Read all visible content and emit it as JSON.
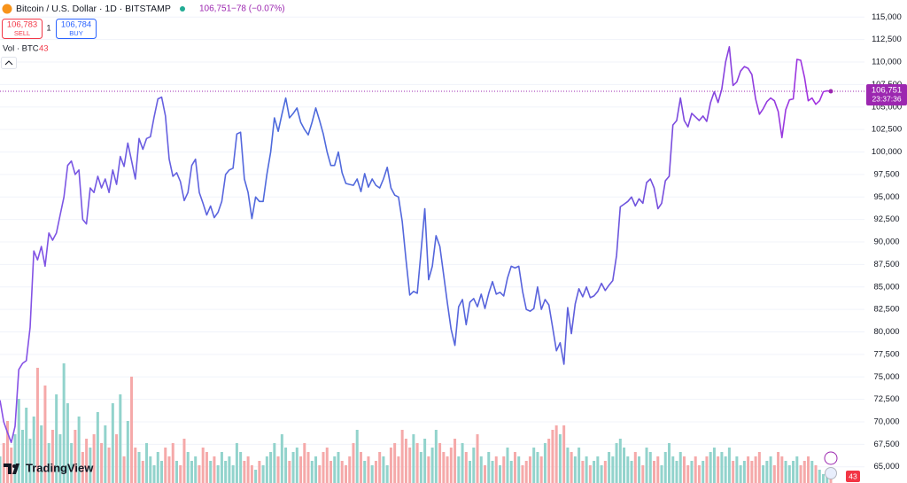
{
  "header": {
    "symbol": "Bitcoin / U.S. Dollar · 1D · BITSTAMP",
    "price": "106,751",
    "change": "−78 (−0.07%)",
    "sell_price": "106,783",
    "sell_label": "SELL",
    "spread": "1",
    "buy_price": "106,784",
    "buy_label": "BUY",
    "vol_label": "Vol · BTC",
    "vol_value": "43"
  },
  "price_badge": {
    "price": "106,751",
    "countdown": "23:37:36"
  },
  "logo": "TradingView",
  "chart_data": {
    "type": "line",
    "series": [
      {
        "colors": [
          "#8a4fe6",
          "#4d6bdc",
          "#5a62dc",
          "#a62fe0"
        ],
        "values": [
          72400,
          70000,
          68800,
          67700,
          69500,
          75800,
          76500,
          76800,
          80500,
          89000,
          88000,
          89500,
          87300,
          91000,
          90200,
          91000,
          93000,
          95000,
          98500,
          99000,
          97500,
          98000,
          92500,
          92000,
          96000,
          95500,
          97300,
          96000,
          97000,
          95500,
          98000,
          96400,
          99500,
          98400,
          101000,
          99000,
          97000,
          101500,
          100300,
          101500,
          101700,
          103900,
          105900,
          106100,
          104000,
          99200,
          97300,
          97700,
          96700,
          94600,
          95500,
          98500,
          99200,
          95500,
          94300,
          93000,
          94000,
          92700,
          93300,
          94500,
          97500,
          98000,
          98200,
          102000,
          102200,
          97000,
          95500,
          92600,
          95000,
          94500,
          94500,
          97500,
          100000,
          103800,
          102300,
          104200,
          106000,
          103800,
          104300,
          104900,
          103300,
          102500,
          101900,
          103300,
          104900,
          103500,
          102000,
          100000,
          98500,
          98500,
          100000,
          97700,
          96500,
          96400,
          96300,
          97000,
          95600,
          97600,
          96100,
          97000,
          96300,
          96000,
          97000,
          98300,
          96000,
          95200,
          95000,
          92300,
          88000,
          84100,
          84500,
          84300,
          89000,
          93700,
          85800,
          87300,
          90700,
          89500,
          86400,
          83200,
          80300,
          78500,
          82800,
          83600,
          80800,
          83300,
          83700,
          82800,
          84200,
          82600,
          84300,
          85600,
          84200,
          84400,
          84000,
          86000,
          87300,
          87100,
          87300,
          84500,
          82500,
          82300,
          82600,
          85000,
          82500,
          83600,
          83000,
          80500,
          77900,
          78800,
          76400,
          82700,
          79800,
          83100,
          84800,
          83900,
          85000,
          83800,
          84000,
          84500,
          85400,
          84600,
          85200,
          85700,
          88500,
          93900,
          94200,
          94500,
          95000,
          94000,
          94800,
          94300,
          96600,
          97000,
          96000,
          93700,
          94300,
          96800,
          97300,
          103000,
          103500,
          106000,
          103500,
          102800,
          104300,
          103900,
          103500,
          104000,
          103400,
          105500,
          106700,
          105500,
          107000,
          110000,
          111700,
          107400,
          107800,
          109000,
          109500,
          109300,
          108600,
          105900,
          104200,
          104800,
          105600,
          106000,
          105700,
          104500,
          101600,
          104700,
          105800,
          105900,
          110300,
          110200,
          108300,
          105700,
          106000,
          105300,
          105700,
          106700,
          106800,
          106751
        ]
      }
    ],
    "volume": {
      "up_color": "#92d3cc",
      "down_color": "#f5a9a9",
      "ylim": [
        0,
        140
      ],
      "values": [
        30,
        45,
        70,
        40,
        55,
        95,
        60,
        85,
        50,
        75,
        130,
        65,
        110,
        45,
        60,
        100,
        55,
        135,
        90,
        45,
        60,
        75,
        35,
        50,
        40,
        55,
        80,
        45,
        65,
        40,
        90,
        55,
        100,
        30,
        70,
        120,
        40,
        35,
        25,
        45,
        30,
        20,
        35,
        25,
        40,
        30,
        45,
        25,
        20,
        50,
        35,
        25,
        30,
        20,
        40,
        35,
        25,
        30,
        20,
        35,
        25,
        30,
        20,
        45,
        35,
        25,
        30,
        20,
        15,
        25,
        20,
        30,
        35,
        45,
        30,
        55,
        40,
        25,
        35,
        40,
        30,
        45,
        35,
        25,
        30,
        20,
        35,
        40,
        25,
        30,
        35,
        25,
        20,
        30,
        45,
        60,
        35,
        25,
        30,
        20,
        25,
        35,
        30,
        20,
        40,
        45,
        30,
        60,
        50,
        40,
        55,
        45,
        35,
        50,
        30,
        40,
        60,
        45,
        35,
        30,
        40,
        50,
        30,
        45,
        35,
        25,
        40,
        55,
        30,
        20,
        35,
        25,
        30,
        20,
        30,
        40,
        25,
        35,
        30,
        20,
        25,
        30,
        40,
        35,
        30,
        45,
        50,
        60,
        65,
        55,
        65,
        40,
        35,
        30,
        40,
        25,
        30,
        20,
        25,
        30,
        20,
        25,
        35,
        30,
        45,
        50,
        40,
        30,
        25,
        35,
        30,
        20,
        40,
        35,
        25,
        30,
        20,
        35,
        45,
        30,
        25,
        35,
        30,
        20,
        25,
        30,
        20,
        25,
        30,
        35,
        40,
        30,
        35,
        30,
        40,
        25,
        30,
        20,
        25,
        30,
        25,
        30,
        35,
        20,
        25,
        30,
        20,
        35,
        30,
        25,
        20,
        25,
        30,
        20,
        25,
        30,
        25,
        20,
        15,
        10,
        15,
        8
      ]
    },
    "ylim": [
      63200,
      116900
    ],
    "yticks": [
      {
        "value": 65000,
        "label": "65,000"
      },
      {
        "value": 67500,
        "label": "67,500"
      },
      {
        "value": 70000,
        "label": "70,000"
      },
      {
        "value": 72500,
        "label": "72,500"
      },
      {
        "value": 75000,
        "label": "75,000"
      },
      {
        "value": 77500,
        "label": "77,500"
      },
      {
        "value": 80000,
        "label": "80,000"
      },
      {
        "value": 82500,
        "label": "82,500"
      },
      {
        "value": 85000,
        "label": "85,000"
      },
      {
        "value": 87500,
        "label": "87,500"
      },
      {
        "value": 90000,
        "label": "90,000"
      },
      {
        "value": 92500,
        "label": "92,500"
      },
      {
        "value": 95000,
        "label": "95,000"
      },
      {
        "value": 97500,
        "label": "97,500"
      },
      {
        "value": 100000,
        "label": "100,000"
      },
      {
        "value": 102500,
        "label": "102,500"
      },
      {
        "value": 105000,
        "label": "105,000"
      },
      {
        "value": 107500,
        "label": "107,500"
      },
      {
        "value": 110000,
        "label": "110,000"
      },
      {
        "value": 112500,
        "label": "112,500"
      },
      {
        "value": 115000,
        "label": "115,000"
      }
    ],
    "grid": true,
    "last_price_color": "#9c27b0"
  }
}
